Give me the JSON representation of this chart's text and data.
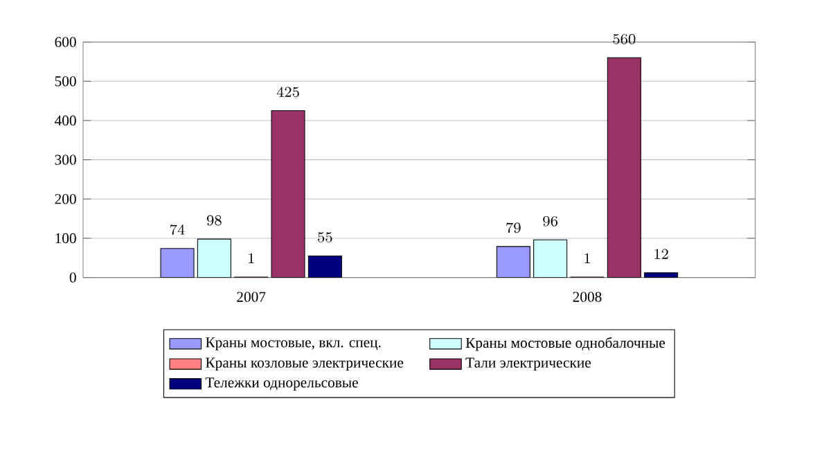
{
  "chart_data": {
    "type": "bar",
    "categories": [
      "2007",
      "2008"
    ],
    "series": [
      {
        "name": "Краны мостовые, вкл. спец.",
        "color": "#9999ff",
        "values": [
          74,
          79
        ]
      },
      {
        "name": "Краны мостовые однобалочные",
        "color": "#ccffff",
        "values": [
          98,
          96
        ]
      },
      {
        "name": "Краны козловые электрические",
        "color": "#ff8080",
        "values": [
          1,
          1
        ]
      },
      {
        "name": "Тали электрические",
        "color": "#993366",
        "values": [
          425,
          560
        ]
      },
      {
        "name": "Тележки однорельсовые",
        "color": "#000080",
        "values": [
          55,
          12
        ]
      }
    ],
    "ylim": [
      0,
      600
    ],
    "yticks": [
      0,
      100,
      200,
      300,
      400,
      500,
      600
    ],
    "grid": "y",
    "legend": "bottom",
    "data_labels": true
  }
}
